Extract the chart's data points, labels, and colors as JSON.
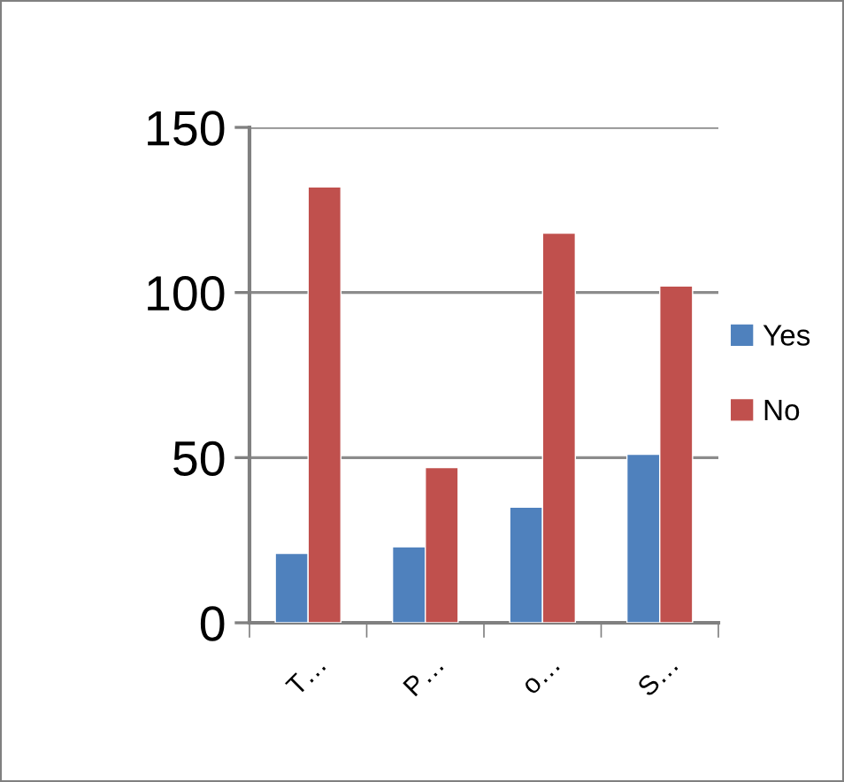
{
  "chart_data": {
    "type": "bar",
    "categories": [
      "T…",
      "P…",
      "o…",
      "S…"
    ],
    "series": [
      {
        "name": "Yes",
        "color": "#4f81bd",
        "values": [
          21,
          23,
          35,
          51
        ]
      },
      {
        "name": "No",
        "color": "#c0504d",
        "values": [
          132,
          47,
          118,
          102
        ]
      }
    ],
    "ylim": [
      0,
      150
    ],
    "yticks": [
      0,
      50,
      100,
      150
    ],
    "grid": "y",
    "legend": "right"
  }
}
